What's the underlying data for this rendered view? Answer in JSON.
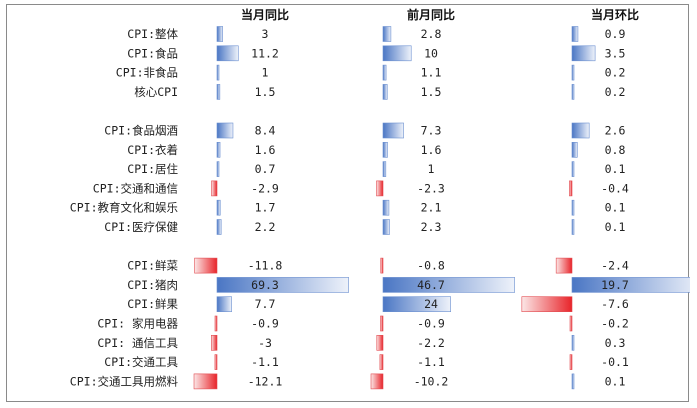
{
  "chart_data": {
    "type": "table",
    "columns": [
      "当月同比",
      "前月同比",
      "当月环比"
    ],
    "groups": [
      {
        "rows": [
          {
            "label": "CPI:整体",
            "values": [
              3,
              2.8,
              0.9
            ],
            "display": [
              "3",
              "2.8",
              "0.9"
            ]
          },
          {
            "label": "CPI:食品",
            "values": [
              11.2,
              10,
              3.5
            ],
            "display": [
              "11.2",
              "10",
              "3.5"
            ]
          },
          {
            "label": "CPI:非食品",
            "values": [
              1,
              1.1,
              0.2
            ],
            "display": [
              "1",
              "1.1",
              "0.2"
            ]
          },
          {
            "label": "核心CPI",
            "values": [
              1.5,
              1.5,
              0.2
            ],
            "display": [
              "1.5",
              "1.5",
              "0.2"
            ]
          }
        ]
      },
      {
        "rows": [
          {
            "label": "CPI:食品烟酒",
            "values": [
              8.4,
              7.3,
              2.6
            ],
            "display": [
              "8.4",
              "7.3",
              "2.6"
            ]
          },
          {
            "label": "CPI:衣着",
            "values": [
              1.6,
              1.6,
              0.8
            ],
            "display": [
              "1.6",
              "1.6",
              "0.8"
            ]
          },
          {
            "label": "CPI:居住",
            "values": [
              0.7,
              1,
              0.1
            ],
            "display": [
              "0.7",
              "1",
              "0.1"
            ]
          },
          {
            "label": "CPI:交通和通信",
            "values": [
              -2.9,
              -2.3,
              -0.4
            ],
            "display": [
              "-2.9",
              "-2.3",
              "-0.4"
            ]
          },
          {
            "label": "CPI:教育文化和娱乐",
            "values": [
              1.7,
              2.1,
              0.1
            ],
            "display": [
              "1.7",
              "2.1",
              "0.1"
            ]
          },
          {
            "label": "CPI:医疗保健",
            "values": [
              2.2,
              2.3,
              0.1
            ],
            "display": [
              "2.2",
              "2.3",
              "0.1"
            ]
          }
        ]
      },
      {
        "rows": [
          {
            "label": "CPI:鲜菜",
            "values": [
              -11.8,
              -0.8,
              -2.4
            ],
            "display": [
              "-11.8",
              "-0.8",
              "-2.4"
            ]
          },
          {
            "label": "CPI:猪肉",
            "values": [
              69.3,
              46.7,
              19.7
            ],
            "display": [
              "69.3",
              "46.7",
              "19.7"
            ]
          },
          {
            "label": "CPI:鲜果",
            "values": [
              7.7,
              24,
              -7.6
            ],
            "display": [
              "7.7",
              "24",
              "-7.6"
            ]
          },
          {
            "label": "CPI: 家用电器",
            "values": [
              -0.9,
              -0.9,
              -0.2
            ],
            "display": [
              "-0.9",
              "-0.9",
              "-0.2"
            ]
          },
          {
            "label": "CPI: 通信工具",
            "values": [
              -3,
              -2.2,
              0.3
            ],
            "display": [
              "-3",
              "-2.2",
              "0.3"
            ]
          },
          {
            "label": "CPI:交通工具",
            "values": [
              -1.1,
              -1.1,
              -0.1
            ],
            "display": [
              "-1.1",
              "-1.1",
              "-0.1"
            ]
          },
          {
            "label": "CPI:交通工具用燃料",
            "values": [
              -12.1,
              -10.2,
              0.1
            ],
            "display": [
              "-12.1",
              "-10.2",
              "0.1"
            ]
          }
        ]
      }
    ],
    "colors": {
      "positive": "#4a76c4",
      "negative": "#e8242a"
    }
  }
}
